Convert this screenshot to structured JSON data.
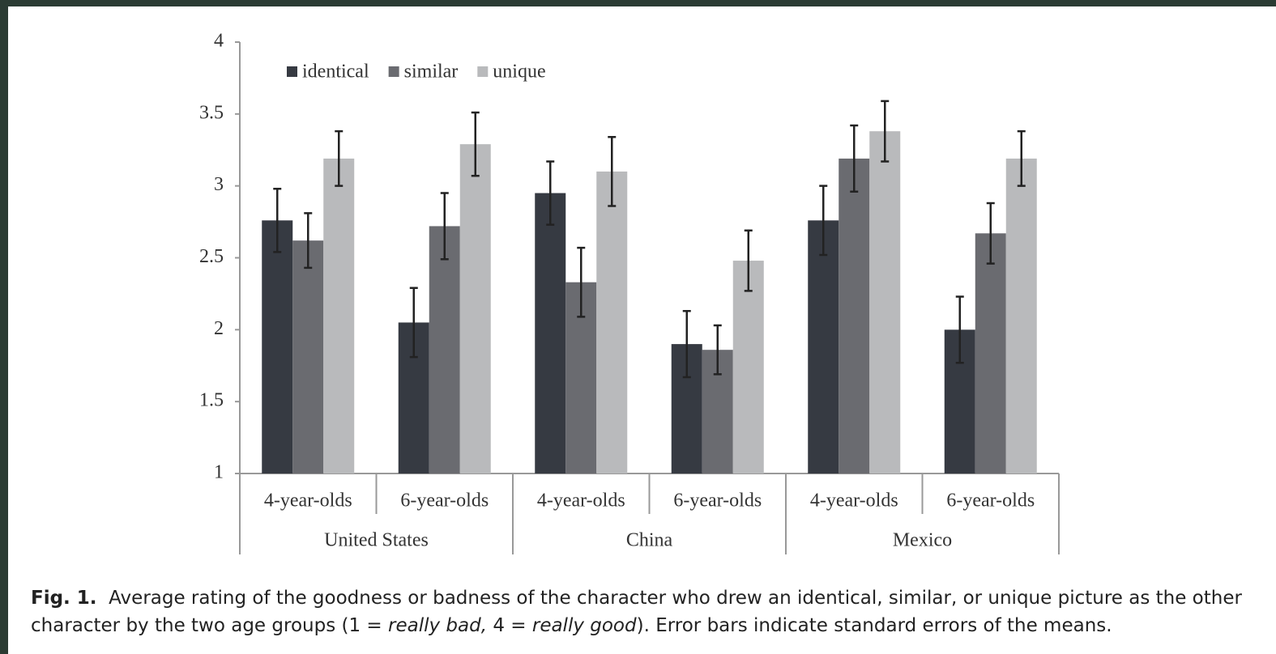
{
  "chart_data": {
    "type": "bar",
    "categories": [
      "4-year-olds",
      "6-year-olds",
      "4-year-olds",
      "6-year-olds",
      "4-year-olds",
      "6-year-olds"
    ],
    "groups": [
      "United States",
      "China",
      "Mexico"
    ],
    "series": [
      {
        "name": "identical",
        "color": "#363a42",
        "values": [
          2.76,
          2.05,
          2.95,
          1.9,
          2.76,
          2.0
        ],
        "errors": [
          0.22,
          0.24,
          0.22,
          0.23,
          0.24,
          0.23
        ]
      },
      {
        "name": "similar",
        "color": "#6a6b70",
        "values": [
          2.62,
          2.72,
          2.33,
          1.86,
          3.19,
          2.67
        ],
        "errors": [
          0.19,
          0.23,
          0.24,
          0.17,
          0.23,
          0.21
        ]
      },
      {
        "name": "unique",
        "color": "#b9babc",
        "values": [
          3.19,
          3.29,
          3.1,
          2.48,
          3.38,
          3.19
        ],
        "errors": [
          0.19,
          0.22,
          0.24,
          0.21,
          0.21,
          0.19
        ]
      }
    ],
    "ylim": [
      1,
      4
    ],
    "yticks": [
      1,
      1.5,
      2,
      2.5,
      3,
      3.5,
      4
    ],
    "grid": false,
    "legend": "top-left"
  },
  "caption": {
    "label": "Fig. 1.",
    "line_1": "Average rating of the goodness or badness of the character who drew an identical, similar, or unique picture as the other",
    "line_2_start": "character by the two age groups (1 = ",
    "italic_1": "really bad,",
    "middle": " 4 = ",
    "italic_2": "really good",
    "line_2_end": "). Error bars indicate standard errors of the means."
  }
}
